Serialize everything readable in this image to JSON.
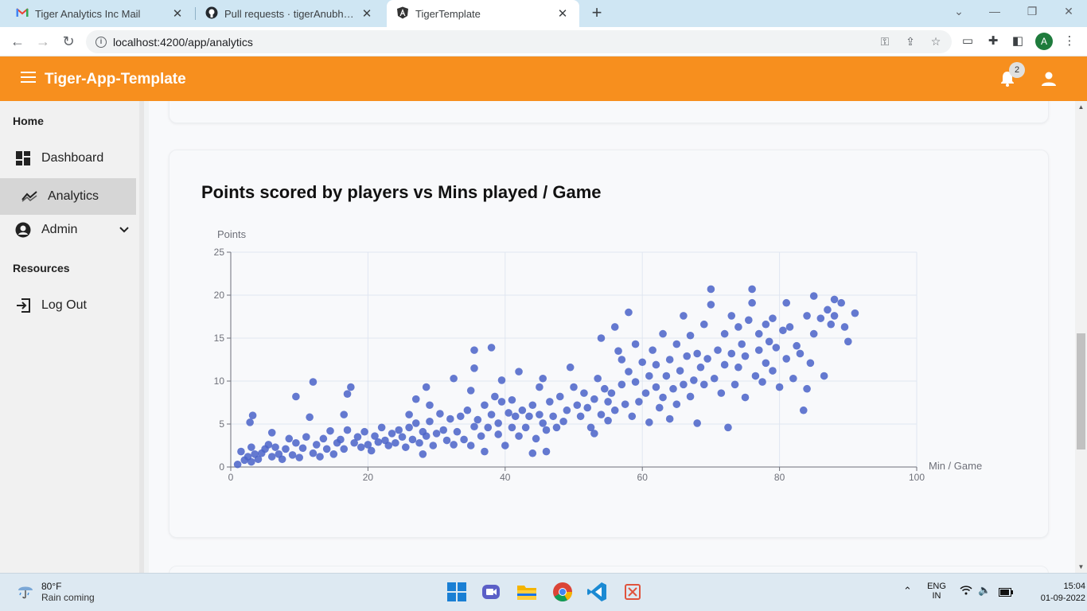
{
  "browser": {
    "tabs": [
      {
        "title": "Tiger Analytics Inc Mail",
        "icon": "gmail-icon"
      },
      {
        "title": "Pull requests · tigerAnubhav/reta",
        "icon": "github-icon"
      },
      {
        "title": "TigerTemplate",
        "icon": "angular-icon",
        "active": true
      }
    ],
    "url": "localhost:4200/app/analytics",
    "profile_initial": "A"
  },
  "header": {
    "app_title": "Tiger-App-Template",
    "notification_count": "2",
    "brand_color": "#f78f1e"
  },
  "sidebar": {
    "section_home": "Home",
    "items": [
      {
        "label": "Dashboard",
        "icon": "dashboard-icon"
      },
      {
        "label": "Analytics",
        "icon": "analytics-icon",
        "active": true
      },
      {
        "label": "Admin",
        "icon": "admin-icon",
        "expandable": true
      }
    ],
    "section_resources": "Resources",
    "logout": {
      "label": "Log Out",
      "icon": "logout-icon"
    }
  },
  "chart": {
    "title": "Points scored by players vs Mins played / Game"
  },
  "chart_data": {
    "type": "scatter",
    "title": "Points scored by players vs Mins played / Game",
    "xlabel": "Min / Game",
    "ylabel": "Points",
    "xlim": [
      0,
      100
    ],
    "ylim": [
      0,
      25
    ],
    "x_ticks": [
      "0",
      "20",
      "40",
      "60",
      "80",
      "100"
    ],
    "y_ticks": [
      "0",
      "5",
      "10",
      "15",
      "20",
      "25"
    ],
    "grid": true,
    "point_color": "#4a63c8",
    "series": [
      {
        "points": [
          [
            1,
            0.3
          ],
          [
            1.5,
            1.8
          ],
          [
            2,
            0.8
          ],
          [
            2.5,
            1.2
          ],
          [
            3,
            0.6
          ],
          [
            3,
            2.3
          ],
          [
            3.5,
            1.5
          ],
          [
            2.8,
            5.2
          ],
          [
            3.2,
            6
          ],
          [
            4,
            0.9
          ],
          [
            4.5,
            1.6
          ],
          [
            5,
            2.1
          ],
          [
            5.5,
            2.6
          ],
          [
            6,
            1.2
          ],
          [
            6,
            4
          ],
          [
            6.5,
            2.3
          ],
          [
            7,
            1.5
          ],
          [
            7.5,
            0.9
          ],
          [
            8,
            2.1
          ],
          [
            8.5,
            3.3
          ],
          [
            9,
            1.4
          ],
          [
            9.5,
            2.8
          ],
          [
            9.5,
            8.2
          ],
          [
            10,
            1.1
          ],
          [
            10.5,
            2.2
          ],
          [
            11,
            3.5
          ],
          [
            11.5,
            5.8
          ],
          [
            12,
            1.6
          ],
          [
            12,
            9.9
          ],
          [
            12.5,
            2.6
          ],
          [
            13,
            1.2
          ],
          [
            13.5,
            3.3
          ],
          [
            14,
            2.1
          ],
          [
            14.5,
            4.2
          ],
          [
            15,
            1.5
          ],
          [
            15.5,
            2.8
          ],
          [
            16,
            3.2
          ],
          [
            16.5,
            2.1
          ],
          [
            17,
            4.3
          ],
          [
            17,
            8.5
          ],
          [
            17.5,
            9.3
          ],
          [
            16.5,
            6.1
          ],
          [
            18,
            2.8
          ],
          [
            18.5,
            3.5
          ],
          [
            19,
            2.3
          ],
          [
            19.5,
            4.1
          ],
          [
            20,
            2.6
          ],
          [
            20.5,
            1.9
          ],
          [
            21,
            3.6
          ],
          [
            21.5,
            2.9
          ],
          [
            22,
            4.6
          ],
          [
            22.5,
            3.1
          ],
          [
            23,
            2.5
          ],
          [
            23.5,
            3.9
          ],
          [
            24,
            2.8
          ],
          [
            24.5,
            4.3
          ],
          [
            25,
            3.5
          ],
          [
            25.5,
            2.3
          ],
          [
            26,
            4.6
          ],
          [
            26,
            6.1
          ],
          [
            26.5,
            3.2
          ],
          [
            27,
            5.1
          ],
          [
            27,
            7.9
          ],
          [
            27.5,
            2.8
          ],
          [
            28,
            4.1
          ],
          [
            28,
            1.5
          ],
          [
            28.5,
            3.6
          ],
          [
            28.5,
            9.3
          ],
          [
            29,
            5.3
          ],
          [
            29,
            7.2
          ],
          [
            29.5,
            2.5
          ],
          [
            30,
            3.9
          ],
          [
            30.5,
            6.2
          ],
          [
            31,
            4.3
          ],
          [
            31.5,
            3.1
          ],
          [
            32,
            5.6
          ],
          [
            32.5,
            2.6
          ],
          [
            32.5,
            10.3
          ],
          [
            33,
            4.1
          ],
          [
            33.5,
            5.9
          ],
          [
            34,
            3.2
          ],
          [
            34.5,
            6.6
          ],
          [
            35,
            2.5
          ],
          [
            35,
            8.9
          ],
          [
            35.5,
            4.7
          ],
          [
            35.5,
            11.5
          ],
          [
            35.5,
            13.6
          ],
          [
            36,
            5.5
          ],
          [
            36.5,
            3.6
          ],
          [
            37,
            7.2
          ],
          [
            37,
            1.8
          ],
          [
            37.5,
            4.6
          ],
          [
            38,
            6.1
          ],
          [
            38,
            13.9
          ],
          [
            38.5,
            8.2
          ],
          [
            39,
            5.1
          ],
          [
            39,
            3.8
          ],
          [
            39.5,
            7.6
          ],
          [
            39.5,
            10.1
          ],
          [
            40,
            2.5
          ],
          [
            40.5,
            6.3
          ],
          [
            41,
            4.6
          ],
          [
            41,
            7.8
          ],
          [
            41.5,
            5.9
          ],
          [
            42,
            3.6
          ],
          [
            42,
            11.1
          ],
          [
            42.5,
            6.6
          ],
          [
            43,
            4.6
          ],
          [
            43.5,
            5.9
          ],
          [
            44,
            1.6
          ],
          [
            44,
            7.2
          ],
          [
            44.5,
            3.3
          ],
          [
            45,
            6.1
          ],
          [
            45,
            9.3
          ],
          [
            45.5,
            5.1
          ],
          [
            45.5,
            10.3
          ],
          [
            46,
            1.8
          ],
          [
            46,
            4.3
          ],
          [
            46.5,
            7.6
          ],
          [
            47,
            5.9
          ],
          [
            47.5,
            4.6
          ],
          [
            48,
            8.2
          ],
          [
            48.5,
            5.3
          ],
          [
            49,
            6.6
          ],
          [
            49.5,
            11.6
          ],
          [
            50,
            9.3
          ],
          [
            50.5,
            7.2
          ],
          [
            51,
            5.9
          ],
          [
            51.5,
            8.6
          ],
          [
            52,
            6.9
          ],
          [
            52.5,
            4.6
          ],
          [
            53,
            7.9
          ],
          [
            53,
            3.9
          ],
          [
            53.5,
            10.3
          ],
          [
            54,
            6.1
          ],
          [
            54,
            15
          ],
          [
            54.5,
            9.1
          ],
          [
            55,
            5.4
          ],
          [
            55,
            7.6
          ],
          [
            55.5,
            8.6
          ],
          [
            56,
            6.6
          ],
          [
            56,
            16.3
          ],
          [
            56.5,
            13.5
          ],
          [
            57,
            9.6
          ],
          [
            57,
            12.5
          ],
          [
            57.5,
            7.3
          ],
          [
            58,
            11.1
          ],
          [
            58,
            18
          ],
          [
            58.5,
            5.9
          ],
          [
            59,
            9.9
          ],
          [
            59,
            14.3
          ],
          [
            59.5,
            7.6
          ],
          [
            60,
            12.2
          ],
          [
            60.5,
            8.6
          ],
          [
            61,
            10.6
          ],
          [
            61,
            5.2
          ],
          [
            61.5,
            13.6
          ],
          [
            62,
            9.3
          ],
          [
            62,
            11.9
          ],
          [
            62.5,
            6.9
          ],
          [
            63,
            15.5
          ],
          [
            63,
            8.1
          ],
          [
            63.5,
            10.6
          ],
          [
            64,
            12.5
          ],
          [
            64,
            5.6
          ],
          [
            64.5,
            9.1
          ],
          [
            65,
            14.3
          ],
          [
            65,
            7.3
          ],
          [
            65.5,
            11.2
          ],
          [
            66,
            9.6
          ],
          [
            66,
            17.6
          ],
          [
            66.5,
            12.9
          ],
          [
            67,
            8.2
          ],
          [
            67,
            15.3
          ],
          [
            67.5,
            10.1
          ],
          [
            68,
            13.2
          ],
          [
            68,
            5.1
          ],
          [
            68.5,
            11.6
          ],
          [
            69,
            16.6
          ],
          [
            69,
            9.6
          ],
          [
            69.5,
            12.6
          ],
          [
            70,
            18.9
          ],
          [
            70,
            20.7
          ],
          [
            70.5,
            10.3
          ],
          [
            71,
            13.6
          ],
          [
            71.5,
            8.6
          ],
          [
            72,
            15.5
          ],
          [
            72,
            11.9
          ],
          [
            72.5,
            4.6
          ],
          [
            73,
            13.2
          ],
          [
            73,
            17.6
          ],
          [
            73.5,
            9.6
          ],
          [
            74,
            16.3
          ],
          [
            74,
            11.6
          ],
          [
            74.5,
            14.3
          ],
          [
            75,
            12.9
          ],
          [
            75,
            8.1
          ],
          [
            75.5,
            17.1
          ],
          [
            76,
            19.1
          ],
          [
            76,
            20.7
          ],
          [
            76.5,
            10.6
          ],
          [
            77,
            15.5
          ],
          [
            77,
            13.6
          ],
          [
            77.5,
            9.9
          ],
          [
            78,
            16.6
          ],
          [
            78,
            12.1
          ],
          [
            78.5,
            14.6
          ],
          [
            79,
            11.2
          ],
          [
            79,
            17.3
          ],
          [
            79.5,
            13.9
          ],
          [
            80,
            9.3
          ],
          [
            80.5,
            15.9
          ],
          [
            81,
            12.6
          ],
          [
            81,
            19.1
          ],
          [
            81.5,
            16.3
          ],
          [
            82,
            10.3
          ],
          [
            82.5,
            14.1
          ],
          [
            83,
            13.2
          ],
          [
            83.5,
            6.6
          ],
          [
            84,
            17.6
          ],
          [
            84,
            9.1
          ],
          [
            84.5,
            12.1
          ],
          [
            85,
            15.5
          ],
          [
            85,
            19.9
          ],
          [
            86,
            17.3
          ],
          [
            86.5,
            10.6
          ],
          [
            87,
            18.3
          ],
          [
            87.5,
            16.6
          ],
          [
            88,
            17.6
          ],
          [
            88,
            19.5
          ],
          [
            89,
            19.1
          ],
          [
            89.5,
            16.3
          ],
          [
            90,
            14.6
          ],
          [
            91,
            17.9
          ]
        ]
      }
    ]
  },
  "taskbar": {
    "temperature": "80°F",
    "weather_desc": "Rain coming",
    "lang_top": "ENG",
    "lang_bottom": "IN",
    "time": "15:04",
    "date": "01-09-2022"
  }
}
